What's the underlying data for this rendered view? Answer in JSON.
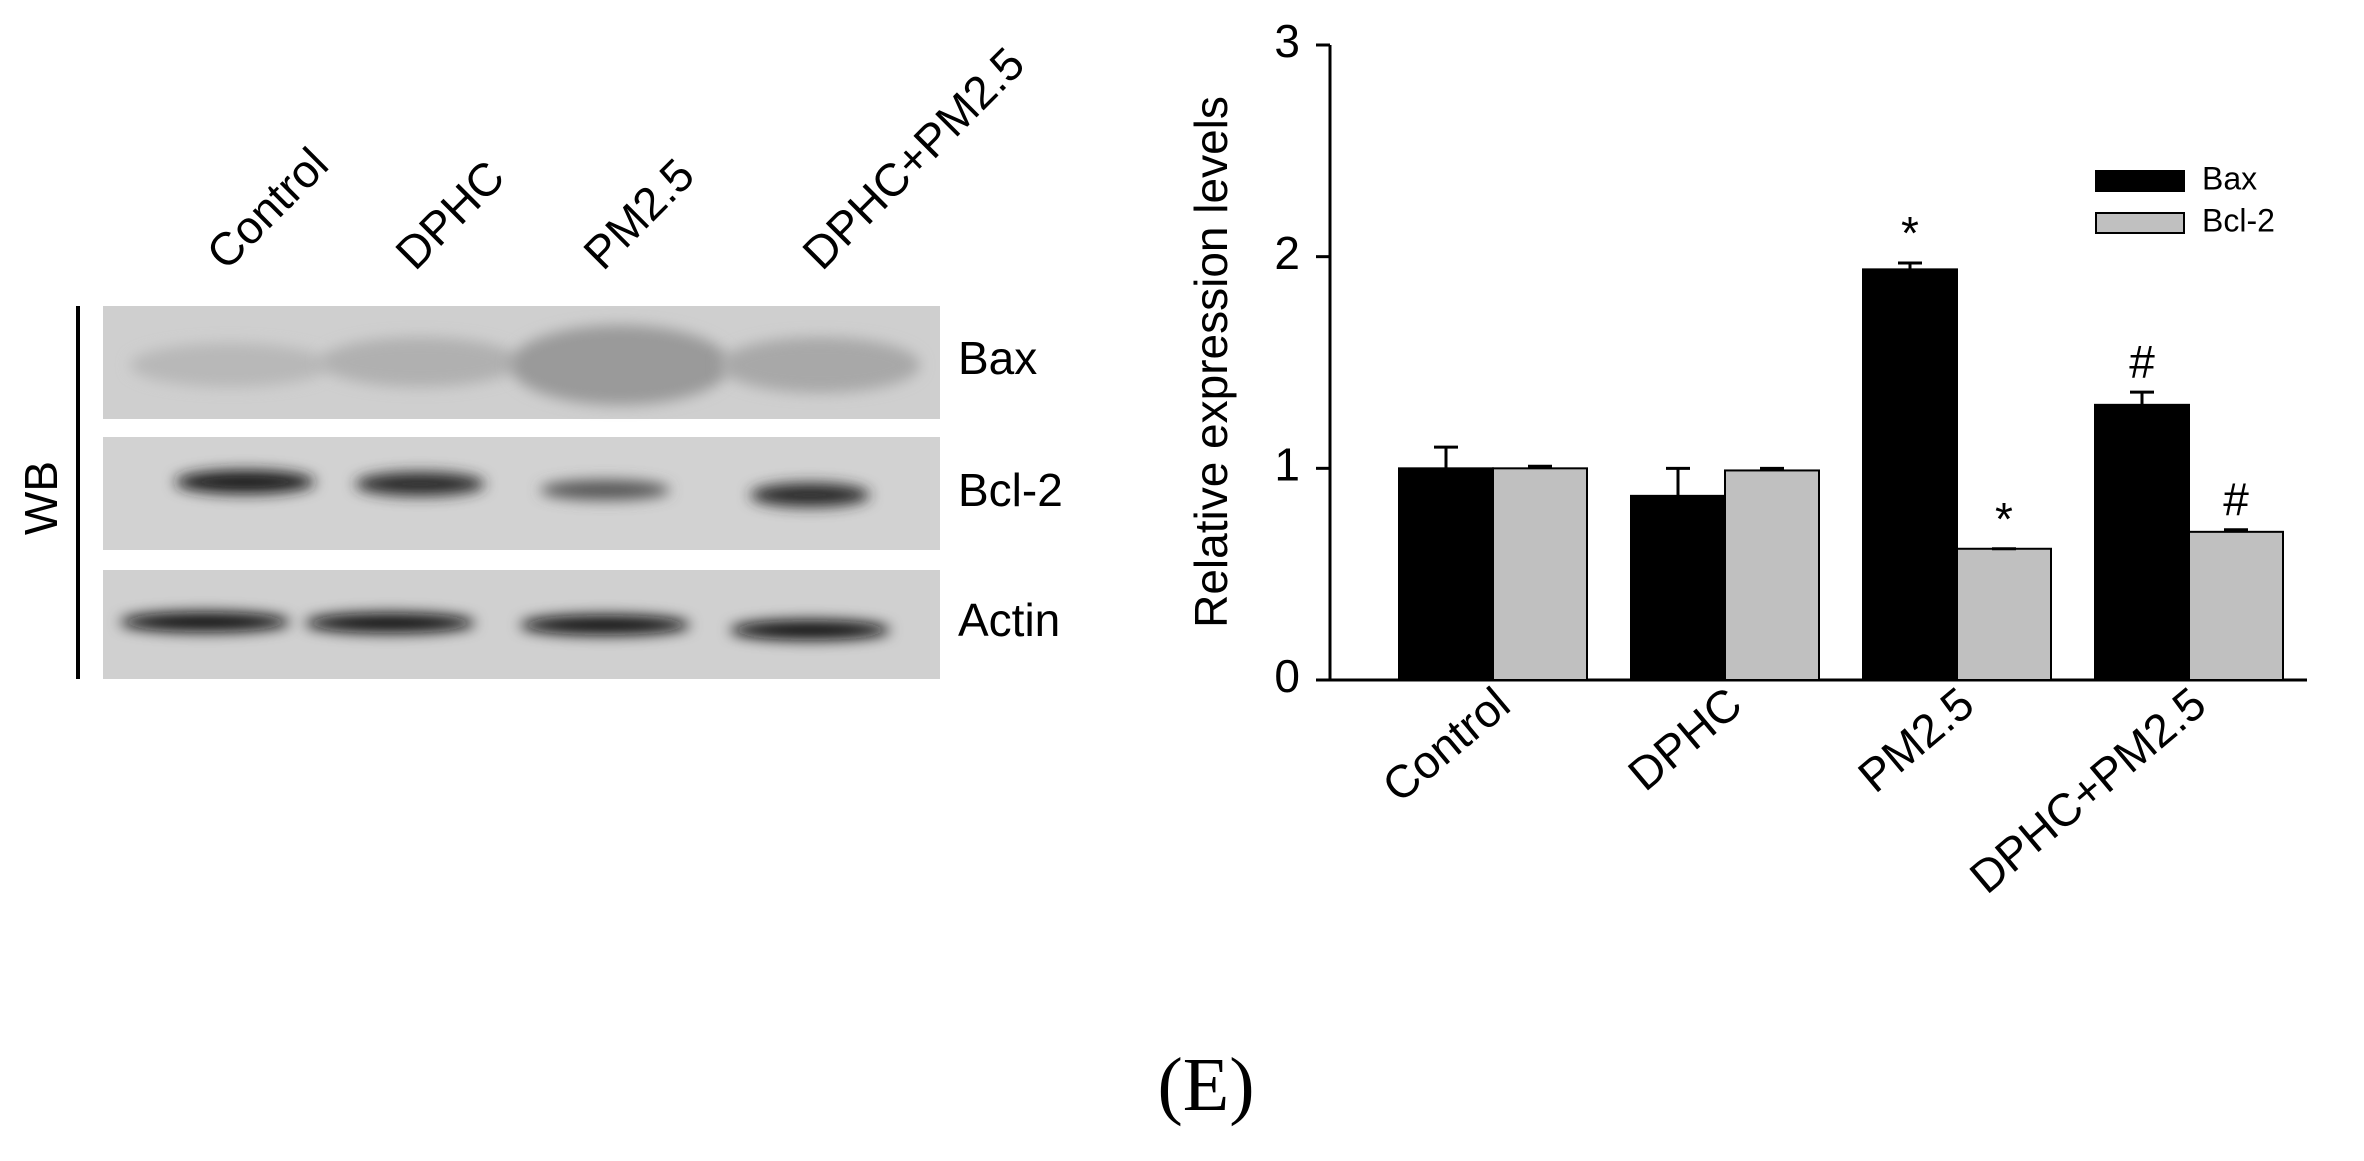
{
  "blot": {
    "lanes": [
      "Control",
      "DPHC",
      "PM2.5",
      "DPHC+PM2.5"
    ],
    "rows": [
      "Bax",
      "Bcl-2",
      "Actin"
    ],
    "side_label": "WB"
  },
  "chart_data": {
    "type": "bar",
    "y_label": "Relative expression levels",
    "categories": [
      "Control",
      "DPHC",
      "PM2.5",
      "DPHC+PM2.5"
    ],
    "series": [
      {
        "name": "Bax",
        "color": "#000000",
        "values": [
          1.0,
          0.87,
          1.94,
          1.3
        ],
        "errors": [
          0.1,
          0.13,
          0.03,
          0.06
        ],
        "annotations": [
          null,
          null,
          "*",
          "#"
        ]
      },
      {
        "name": "Bcl-2",
        "color": "#c0c0c0",
        "values": [
          1.0,
          0.99,
          0.62,
          0.7
        ],
        "errors": [
          0.01,
          0.01,
          0.0,
          0.01
        ],
        "annotations": [
          null,
          null,
          "*",
          "#"
        ]
      }
    ],
    "ylim": [
      0,
      3
    ],
    "yticks": [
      0,
      1,
      2,
      3
    ],
    "legend": "upper-right"
  },
  "caption": "(E)"
}
